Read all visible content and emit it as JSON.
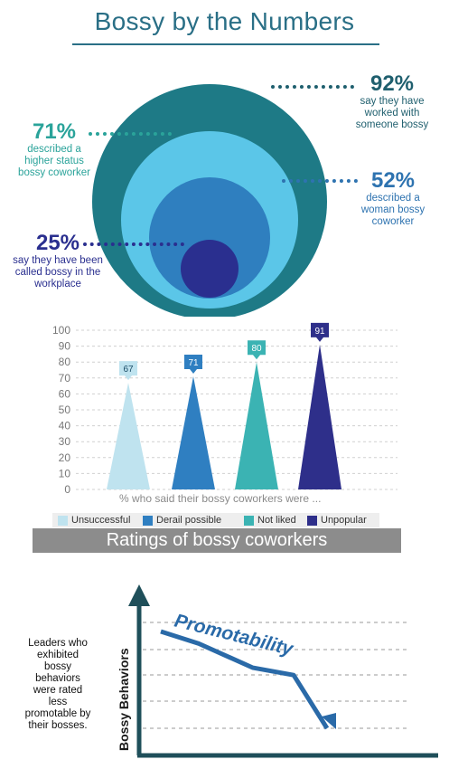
{
  "title": "Bossy by the Numbers",
  "colors": {
    "title": "#2a6f86",
    "outer_circle": "#1e7a86",
    "second_circle": "#5bc6e8",
    "third_circle": "#2f7fbf",
    "inner_circle": "#2a2f8f",
    "accent_92": "#1f5f6e",
    "accent_71": "#2aa39a",
    "accent_52": "#2e73b0",
    "accent_25": "#2a2f8f"
  },
  "stats": [
    {
      "pct": "92%",
      "desc": [
        "say they have",
        "worked with",
        "someone bossy"
      ]
    },
    {
      "pct": "71%",
      "desc": [
        "described a",
        "higher status",
        "bossy coworker"
      ]
    },
    {
      "pct": "52%",
      "desc": [
        "described a",
        "woman bossy",
        "coworker"
      ]
    },
    {
      "pct": "25%",
      "desc": [
        "say they have been",
        "called bossy in the",
        "workplace"
      ]
    }
  ],
  "chart_data": [
    {
      "type": "bar",
      "title": "Ratings of bossy coworkers",
      "xlabel": "% who said their bossy coworkers were ...",
      "ylabel": "",
      "ylim": [
        0,
        100
      ],
      "yticks": [
        0,
        10,
        20,
        30,
        40,
        50,
        60,
        70,
        80,
        90,
        100
      ],
      "grid": true,
      "legend": "bottom",
      "categories": [
        "Unsuccessful",
        "Derail possible",
        "Not liked",
        "Unpopular"
      ],
      "values": [
        67,
        71,
        80,
        91
      ],
      "colors": [
        "#bfe3ef",
        "#2f7fc1",
        "#3bb3b3",
        "#2e2f8a"
      ],
      "labels": [
        "67",
        "71",
        "80",
        "91"
      ]
    },
    {
      "type": "line",
      "series": [
        {
          "name": "Promotability",
          "values": [
            5,
            4.5,
            3.5,
            3.2,
            1
          ]
        }
      ],
      "ylabel": "Bossy Behaviors",
      "xlabel": "",
      "grid": true
    }
  ],
  "bar_legend": [
    "Unsuccessful",
    "Derail possible",
    "Not liked",
    "Unpopular"
  ],
  "bar_caption": "% who said their bossy coworkers were ...",
  "banner": "Ratings of bossy coworkers",
  "promo": {
    "label": "Promotability",
    "axis_label": "Bossy Behaviors",
    "side_text": [
      "Leaders who",
      "exhibited",
      "bossy",
      "behaviors",
      "were rated",
      "less",
      "promotable by",
      "their bosses."
    ]
  }
}
